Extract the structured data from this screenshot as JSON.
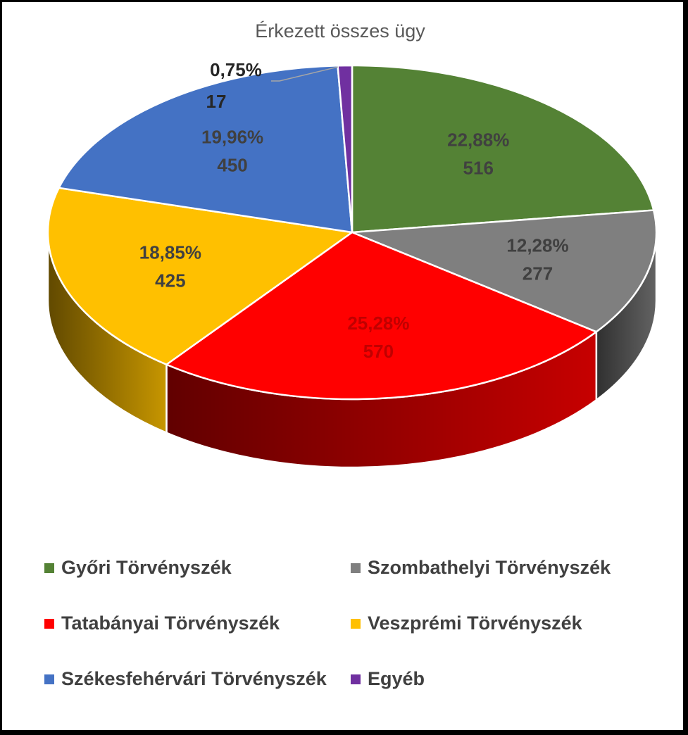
{
  "chart_data": {
    "type": "pie",
    "title": "Érkezett összes ügy",
    "three_d": true,
    "legend_position": "bottom",
    "slices": [
      {
        "name": "Győri Törvényszék",
        "value": 516,
        "percent_label": "22,88%",
        "value_label": "516",
        "color": "#548235",
        "label_color": "#404040"
      },
      {
        "name": "Szombathelyi Törvényszék",
        "value": 277,
        "percent_label": "12,28%",
        "value_label": "277",
        "color": "#7f7f7f",
        "label_color": "#404040"
      },
      {
        "name": "Tatabányai Törvényszék",
        "value": 570,
        "percent_label": "25,28%",
        "value_label": "570",
        "color": "#ff0000",
        "label_color": "#c00000"
      },
      {
        "name": "Veszprémi Törvényszék",
        "value": 425,
        "percent_label": "18,85%",
        "value_label": "425",
        "color": "#ffc000",
        "label_color": "#404040"
      },
      {
        "name": "Székesfehérvári Törvényszék",
        "value": 450,
        "percent_label": "19,96%",
        "value_label": "450",
        "color": "#4472c4",
        "label_color": "#404040"
      },
      {
        "name": "Egyéb",
        "value": 17,
        "percent_label": "0,75%",
        "value_label": "17",
        "color": "#7030a0",
        "label_color": "#262626"
      }
    ]
  }
}
